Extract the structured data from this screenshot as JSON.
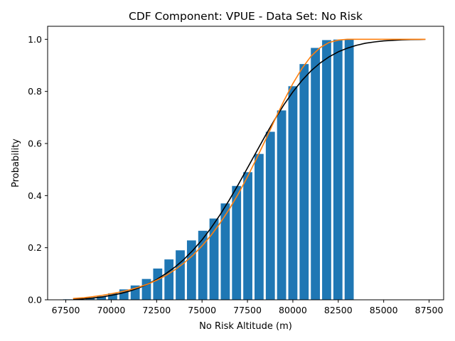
{
  "chart_data": {
    "type": "bar",
    "title": "CDF Component: VPUE - Data Set: No Risk",
    "xlabel": "No Risk Altitude (m)",
    "ylabel": "Probability",
    "xlim": [
      66500,
      88300
    ],
    "ylim": [
      0,
      1.05
    ],
    "x_ticks": [
      67500,
      70000,
      72500,
      75000,
      77500,
      80000,
      82500,
      85000,
      87500
    ],
    "x_tick_labels": [
      "67500",
      "70000",
      "72500",
      "75000",
      "77500",
      "80000",
      "82500",
      "85000",
      "87500"
    ],
    "y_ticks": [
      0,
      0.2,
      0.4,
      0.6,
      0.8,
      1.0
    ],
    "y_tick_labels": [
      "0.0",
      "0.2",
      "0.4",
      "0.6",
      "0.8",
      "1.0"
    ],
    "grid": false,
    "legend": "none",
    "bar_width": 500,
    "bars": {
      "x": [
        67600,
        68220,
        68840,
        69460,
        70080,
        70700,
        71320,
        71940,
        72560,
        73180,
        73800,
        74420,
        75040,
        75660,
        76280,
        76900,
        77520,
        78140,
        78760,
        79380,
        80000,
        80620,
        81240,
        81860,
        82480,
        83100
      ],
      "values": [
        0.002,
        0.004,
        0.008,
        0.013,
        0.025,
        0.04,
        0.055,
        0.08,
        0.12,
        0.155,
        0.19,
        0.228,
        0.265,
        0.312,
        0.37,
        0.437,
        0.49,
        0.56,
        0.645,
        0.727,
        0.82,
        0.905,
        0.967,
        0.997,
        0.999,
        1.0
      ]
    },
    "series": [
      {
        "style": "line",
        "color": "#000000",
        "x": [
          67900,
          68500,
          69000,
          69500,
          70000,
          70500,
          71000,
          71500,
          72000,
          72500,
          73000,
          73500,
          74000,
          74500,
          75000,
          75500,
          76000,
          76500,
          77000,
          77500,
          78000,
          78500,
          79000,
          79500,
          80000,
          80500,
          81000,
          81500,
          82000,
          82500,
          83000,
          83500,
          84000,
          84500,
          85000,
          85500,
          86000,
          86500,
          87000,
          87300
        ],
        "y": [
          0.002,
          0.004,
          0.007,
          0.011,
          0.017,
          0.024,
          0.033,
          0.045,
          0.06,
          0.078,
          0.1,
          0.125,
          0.155,
          0.19,
          0.23,
          0.276,
          0.327,
          0.383,
          0.443,
          0.506,
          0.569,
          0.632,
          0.692,
          0.748,
          0.798,
          0.842,
          0.879,
          0.909,
          0.933,
          0.952,
          0.966,
          0.977,
          0.985,
          0.99,
          0.994,
          0.996,
          0.998,
          0.999,
          0.9995,
          1.0
        ]
      },
      {
        "style": "line",
        "color": "#ff7f0e",
        "x": [
          67900,
          68500,
          69000,
          69500,
          70000,
          70500,
          71000,
          71500,
          72000,
          72500,
          73000,
          73500,
          74000,
          74500,
          75000,
          75500,
          76000,
          76500,
          77000,
          77500,
          78000,
          78500,
          79000,
          79500,
          80000,
          80500,
          81000,
          81500,
          82000,
          82500,
          83000,
          83300,
          84000,
          85000,
          86000,
          87300
        ],
        "y": [
          0.005,
          0.008,
          0.012,
          0.017,
          0.023,
          0.03,
          0.038,
          0.048,
          0.06,
          0.075,
          0.093,
          0.115,
          0.141,
          0.171,
          0.207,
          0.248,
          0.295,
          0.348,
          0.407,
          0.472,
          0.542,
          0.615,
          0.69,
          0.763,
          0.83,
          0.888,
          0.935,
          0.968,
          0.988,
          0.997,
          1.0,
          1.0,
          1.0,
          1.0,
          1.0,
          1.0
        ]
      }
    ],
    "colors": {
      "bars": "#1f77b4",
      "axes": "#000000",
      "background": "#ffffff"
    }
  }
}
